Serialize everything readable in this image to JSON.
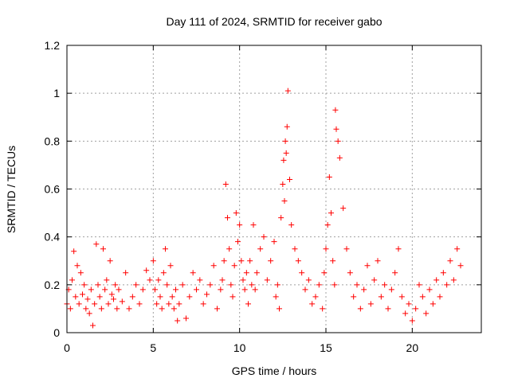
{
  "chart_data": {
    "type": "scatter",
    "title": "Day 111 of 2024, SRMTID for receiver gabo",
    "xlabel": "GPS time / hours",
    "ylabel": "SRMTID / TECUs",
    "xlim": [
      0,
      24
    ],
    "ylim": [
      0,
      1.2
    ],
    "xticks": [
      0,
      5,
      10,
      15,
      20
    ],
    "xtick_labels": [
      "0",
      "5",
      "10",
      "15",
      "20"
    ],
    "yticks": [
      0,
      0.2,
      0.4,
      0.6,
      0.8,
      1,
      1.2
    ],
    "ytick_labels": [
      "0",
      "0.2",
      "0.4",
      "0.6",
      "0.8",
      "1",
      "1.2"
    ],
    "grid": true,
    "marker_color": "#ff0000",
    "series": [
      {
        "name": "SRMTID",
        "marker": "plus",
        "x": [
          0.0,
          0.1,
          0.2,
          0.3,
          0.4,
          0.5,
          0.6,
          0.7,
          0.8,
          0.9,
          1.0,
          1.1,
          1.2,
          1.3,
          1.4,
          1.5,
          1.6,
          1.7,
          1.8,
          1.9,
          2.0,
          2.1,
          2.2,
          2.3,
          2.4,
          2.5,
          2.6,
          2.7,
          2.8,
          2.9,
          3.0,
          3.2,
          3.4,
          3.6,
          3.8,
          4.0,
          4.2,
          4.4,
          4.6,
          4.8,
          5.0,
          5.1,
          5.2,
          5.3,
          5.4,
          5.5,
          5.6,
          5.7,
          5.8,
          5.9,
          6.0,
          6.1,
          6.2,
          6.3,
          6.4,
          6.5,
          6.7,
          6.9,
          7.1,
          7.3,
          7.5,
          7.7,
          7.9,
          8.1,
          8.3,
          8.5,
          8.7,
          8.9,
          9.0,
          9.1,
          9.2,
          9.3,
          9.4,
          9.5,
          9.6,
          9.7,
          9.8,
          9.9,
          10.0,
          10.1,
          10.2,
          10.3,
          10.4,
          10.5,
          10.6,
          10.7,
          10.8,
          10.9,
          11.0,
          11.2,
          11.4,
          11.6,
          11.8,
          12.0,
          12.1,
          12.2,
          12.3,
          12.4,
          12.5,
          12.55,
          12.6,
          12.65,
          12.7,
          12.75,
          12.8,
          12.9,
          13.0,
          13.2,
          13.4,
          13.6,
          13.8,
          14.0,
          14.2,
          14.4,
          14.6,
          14.8,
          14.9,
          15.0,
          15.1,
          15.2,
          15.3,
          15.4,
          15.5,
          15.55,
          15.6,
          15.7,
          15.8,
          16.0,
          16.2,
          16.4,
          16.6,
          16.8,
          17.0,
          17.2,
          17.4,
          17.6,
          17.8,
          18.0,
          18.2,
          18.4,
          18.6,
          18.8,
          19.0,
          19.2,
          19.4,
          19.6,
          19.8,
          20.0,
          20.2,
          20.4,
          20.6,
          20.8,
          21.0,
          21.2,
          21.4,
          21.6,
          21.8,
          22.0,
          22.2,
          22.4,
          22.6,
          22.8
        ],
        "y": [
          0.12,
          0.18,
          0.1,
          0.22,
          0.34,
          0.15,
          0.28,
          0.12,
          0.25,
          0.16,
          0.2,
          0.1,
          0.14,
          0.08,
          0.18,
          0.03,
          0.12,
          0.37,
          0.2,
          0.15,
          0.1,
          0.35,
          0.18,
          0.22,
          0.12,
          0.3,
          0.16,
          0.14,
          0.2,
          0.1,
          0.18,
          0.13,
          0.25,
          0.1,
          0.15,
          0.2,
          0.12,
          0.18,
          0.26,
          0.22,
          0.3,
          0.18,
          0.12,
          0.22,
          0.15,
          0.1,
          0.25,
          0.35,
          0.2,
          0.12,
          0.28,
          0.15,
          0.1,
          0.18,
          0.05,
          0.12,
          0.2,
          0.06,
          0.15,
          0.25,
          0.18,
          0.22,
          0.12,
          0.16,
          0.2,
          0.28,
          0.1,
          0.18,
          0.22,
          0.3,
          0.62,
          0.48,
          0.35,
          0.2,
          0.15,
          0.28,
          0.5,
          0.38,
          0.45,
          0.3,
          0.22,
          0.18,
          0.25,
          0.12,
          0.3,
          0.2,
          0.45,
          0.18,
          0.25,
          0.35,
          0.4,
          0.22,
          0.3,
          0.38,
          0.15,
          0.2,
          0.1,
          0.48,
          0.62,
          0.72,
          0.55,
          0.8,
          0.75,
          0.86,
          1.01,
          0.64,
          0.45,
          0.35,
          0.3,
          0.25,
          0.18,
          0.22,
          0.12,
          0.15,
          0.2,
          0.1,
          0.25,
          0.35,
          0.45,
          0.65,
          0.5,
          0.3,
          0.2,
          0.93,
          0.85,
          0.8,
          0.73,
          0.52,
          0.35,
          0.25,
          0.15,
          0.2,
          0.1,
          0.18,
          0.28,
          0.12,
          0.22,
          0.3,
          0.15,
          0.2,
          0.1,
          0.18,
          0.25,
          0.35,
          0.15,
          0.08,
          0.12,
          0.05,
          0.1,
          0.2,
          0.15,
          0.08,
          0.18,
          0.12,
          0.22,
          0.15,
          0.25,
          0.2,
          0.3,
          0.22,
          0.35,
          0.28
        ]
      }
    ]
  }
}
